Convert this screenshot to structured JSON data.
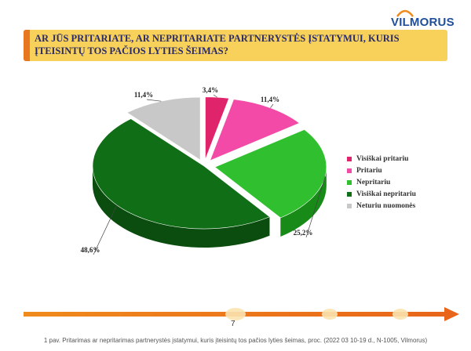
{
  "logo": {
    "text": "VILMORUS",
    "color": "#1f4e9a",
    "arc_color": "#f08a1c"
  },
  "title": "AR JŪS PRITARIATE, AR NEPRITARIATE PARTNERYSTĖS ĮSTATYMUI, KURIS ĮTEISINTŲ TOS PAČIOS LYTIES ŠEIMAS?",
  "page_number": "7",
  "caption": "1 pav. Pritarimas ar nepritarimas partnerystės įstatymui, kuris įteisintų tos pačios lyties šeimas, proc. (2022 03 10-19 d., N-1005, Vilmorus)",
  "chart_data": {
    "type": "pie",
    "title": "",
    "categories": [
      "Visiškai pritariu",
      "Pritariu",
      "Nepritariu",
      "Visiškai nepritariu",
      "Neturiu nuomonės"
    ],
    "values": [
      3.4,
      11.4,
      25.2,
      48.6,
      11.4
    ],
    "labels": [
      "3,4%",
      "11,4%",
      "25,2%",
      "48,6%",
      "11,4%"
    ],
    "colors": [
      "#e0246c",
      "#f24aa6",
      "#2fbf2f",
      "#0f6e16",
      "#c8c8c8"
    ],
    "side_colors": [
      "#8a1040",
      "#a12a6c",
      "#178a17",
      "#0a4d0e",
      "#4a4a4a"
    ],
    "legend_position": "right",
    "three_d": true,
    "exploded": true
  }
}
